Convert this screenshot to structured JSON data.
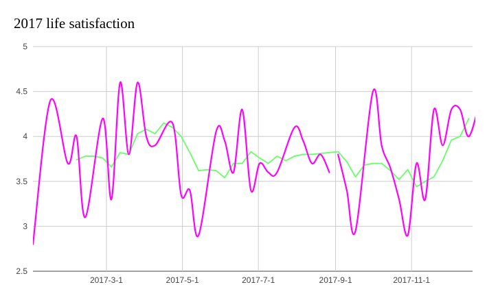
{
  "chart_data": {
    "type": "line",
    "title": "2017 life satisfaction",
    "xlabel": "",
    "ylabel": "",
    "ylim": [
      2.5,
      5
    ],
    "yticks": [
      2.5,
      3,
      3.5,
      4,
      4.5,
      5
    ],
    "ytick_labels": [
      "2.5",
      "3",
      "3.5",
      "4",
      "4.5",
      "5"
    ],
    "xlim": [
      "2017-01-01",
      "2017-12-20"
    ],
    "xtick_labels": [
      "2017-3-1",
      "2017-5-1",
      "2017-7-1",
      "2017-9-1",
      "2017-11-1"
    ],
    "xtick_dates": [
      "2017-03-01",
      "2017-05-01",
      "2017-07-01",
      "2017-09-01",
      "2017-11-01"
    ],
    "grid": true,
    "legend": "none",
    "series": [
      {
        "color": "#ff00ff",
        "smooth": true,
        "segments": [
          [
            [
              "2017-01-01",
              2.8
            ],
            [
              "2017-01-15",
              4.4
            ],
            [
              "2017-01-29",
              3.7
            ],
            [
              "2017-02-05",
              4.0
            ],
            [
              "2017-02-12",
              3.1
            ],
            [
              "2017-02-26",
              4.2
            ],
            [
              "2017-03-05",
              3.3
            ],
            [
              "2017-03-12",
              4.6
            ],
            [
              "2017-03-19",
              3.8
            ],
            [
              "2017-03-26",
              4.6
            ],
            [
              "2017-04-02",
              4.0
            ],
            [
              "2017-04-09",
              3.9
            ],
            [
              "2017-04-23",
              4.15
            ],
            [
              "2017-04-30",
              3.35
            ],
            [
              "2017-05-07",
              3.4
            ],
            [
              "2017-05-14",
              2.9
            ],
            [
              "2017-05-28",
              4.05
            ],
            [
              "2017-06-04",
              3.95
            ],
            [
              "2017-06-11",
              3.6
            ],
            [
              "2017-06-18",
              4.3
            ],
            [
              "2017-06-25",
              3.4
            ],
            [
              "2017-07-02",
              3.7
            ],
            [
              "2017-07-09",
              3.6
            ],
            [
              "2017-07-16",
              3.6
            ],
            [
              "2017-07-30",
              4.1
            ],
            [
              "2017-08-06",
              3.95
            ],
            [
              "2017-08-13",
              3.7
            ],
            [
              "2017-08-20",
              3.8
            ],
            [
              "2017-08-27",
              3.6
            ]
          ],
          [
            [
              "2017-09-03",
              3.8
            ],
            [
              "2017-09-10",
              3.4
            ],
            [
              "2017-09-17",
              2.95
            ],
            [
              "2017-10-01",
              4.5
            ],
            [
              "2017-10-08",
              3.9
            ],
            [
              "2017-10-15",
              3.65
            ],
            [
              "2017-10-22",
              3.3
            ],
            [
              "2017-10-29",
              2.9
            ],
            [
              "2017-11-05",
              3.7
            ],
            [
              "2017-11-12",
              3.3
            ],
            [
              "2017-11-19",
              4.3
            ],
            [
              "2017-11-26",
              3.9
            ],
            [
              "2017-12-03",
              4.3
            ],
            [
              "2017-12-10",
              4.3
            ],
            [
              "2017-12-17",
              4.0
            ],
            [
              "2017-12-26",
              4.4
            ]
          ]
        ]
      },
      {
        "color": "#66ff66",
        "smooth": false,
        "segments": [
          [
            [
              "2017-02-05",
              3.74
            ],
            [
              "2017-02-12",
              3.78
            ],
            [
              "2017-02-19",
              3.78
            ],
            [
              "2017-02-26",
              3.76
            ],
            [
              "2017-03-05",
              3.66
            ],
            [
              "2017-03-12",
              3.82
            ],
            [
              "2017-03-19",
              3.8
            ],
            [
              "2017-03-26",
              4.03
            ],
            [
              "2017-04-02",
              4.08
            ],
            [
              "2017-04-09",
              4.03
            ],
            [
              "2017-04-16",
              4.15
            ],
            [
              "2017-04-23",
              4.1
            ],
            [
              "2017-04-30",
              4.0
            ],
            [
              "2017-05-07",
              3.82
            ],
            [
              "2017-05-14",
              3.62
            ],
            [
              "2017-05-21",
              3.63
            ],
            [
              "2017-05-28",
              3.62
            ],
            [
              "2017-06-04",
              3.54
            ],
            [
              "2017-06-11",
              3.7
            ],
            [
              "2017-06-18",
              3.7
            ],
            [
              "2017-06-25",
              3.83
            ],
            [
              "2017-07-02",
              3.76
            ],
            [
              "2017-07-09",
              3.7
            ],
            [
              "2017-07-16",
              3.78
            ],
            [
              "2017-07-23",
              3.73
            ],
            [
              "2017-07-30",
              3.78
            ],
            [
              "2017-08-06",
              3.8
            ],
            [
              "2017-08-13",
              3.8
            ],
            [
              "2017-08-20",
              3.81
            ],
            [
              "2017-08-27",
              3.82
            ],
            [
              "2017-09-03",
              3.83
            ],
            [
              "2017-09-10",
              3.72
            ],
            [
              "2017-09-17",
              3.55
            ],
            [
              "2017-09-24",
              3.68
            ],
            [
              "2017-10-01",
              3.7
            ],
            [
              "2017-10-08",
              3.7
            ],
            [
              "2017-10-15",
              3.62
            ],
            [
              "2017-10-22",
              3.52
            ],
            [
              "2017-10-29",
              3.63
            ],
            [
              "2017-11-05",
              3.44
            ],
            [
              "2017-11-12",
              3.5
            ],
            [
              "2017-11-19",
              3.55
            ],
            [
              "2017-11-26",
              3.73
            ],
            [
              "2017-12-03",
              3.96
            ],
            [
              "2017-12-10",
              4.0
            ],
            [
              "2017-12-17",
              4.2
            ]
          ]
        ]
      }
    ]
  }
}
